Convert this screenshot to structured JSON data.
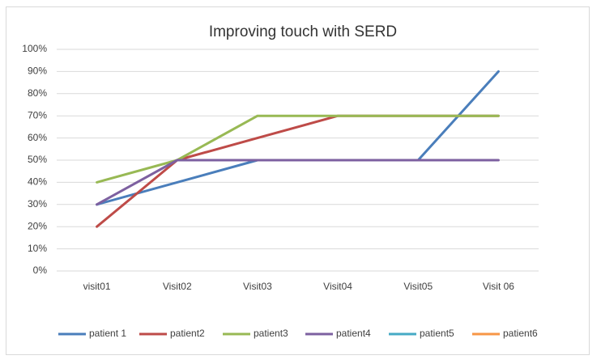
{
  "chart_data": {
    "type": "line",
    "title": "Improving touch with SERD",
    "categories": [
      "visit01",
      "Visit02",
      "Visit03",
      "Visit04",
      "Visit05",
      "Visit 06"
    ],
    "series": [
      {
        "name": "patient 1",
        "color": "#4a7ebb",
        "values": [
          30,
          40,
          50,
          50,
          50,
          90
        ]
      },
      {
        "name": "patient2",
        "color": "#be4b48",
        "values": [
          20,
          50,
          60,
          70,
          70,
          70
        ]
      },
      {
        "name": "patient3",
        "color": "#98b954",
        "values": [
          40,
          50,
          70,
          70,
          70,
          70
        ]
      },
      {
        "name": "patient4",
        "color": "#7d60a0",
        "values": [
          30,
          50,
          50,
          50,
          50,
          50
        ]
      },
      {
        "name": "patient5",
        "color": "#46aac5",
        "values": [
          null,
          null,
          null,
          null,
          null,
          null
        ]
      },
      {
        "name": "patient6",
        "color": "#f79646",
        "values": [
          null,
          null,
          null,
          null,
          null,
          null
        ]
      }
    ],
    "ylim": [
      0,
      100
    ],
    "yticks": [
      {
        "value": 0,
        "label": "0%"
      },
      {
        "value": 10,
        "label": "10%"
      },
      {
        "value": 20,
        "label": "20%"
      },
      {
        "value": 30,
        "label": "30%"
      },
      {
        "value": 40,
        "label": "40%"
      },
      {
        "value": 50,
        "label": "50%"
      },
      {
        "value": 60,
        "label": "60%"
      },
      {
        "value": 70,
        "label": "70%"
      },
      {
        "value": 80,
        "label": "80%"
      },
      {
        "value": 90,
        "label": "90%"
      },
      {
        "value": 100,
        "label": "100%"
      }
    ],
    "grid": true,
    "legend": "bottom"
  }
}
